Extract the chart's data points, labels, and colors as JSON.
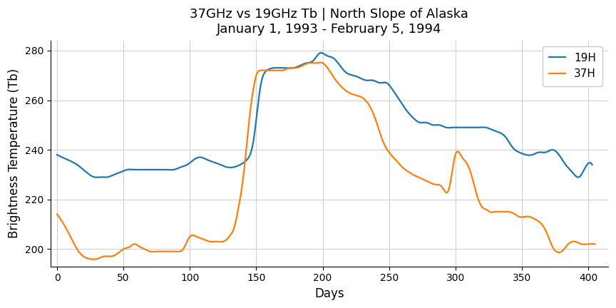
{
  "title_line1": "37GHz vs 19GHz Tb | North Slope of Alaska",
  "title_line2": "January 1, 1993 - February 5, 1994",
  "xlabel": "Days",
  "ylabel": "Brightness Temperature (Tb)",
  "xlim": [
    -5,
    415
  ],
  "ylim": [
    193,
    284
  ],
  "xticks": [
    0,
    50,
    100,
    150,
    200,
    250,
    300,
    350,
    400
  ],
  "yticks": [
    200,
    220,
    240,
    260,
    280
  ],
  "title_fontsize": 13,
  "label_fontsize": 12,
  "tick_fontsize": 10,
  "legend_fontsize": 11,
  "color_19H": "#1f77b4",
  "color_37H": "#ff7f0e",
  "linewidth": 1.6,
  "19H_x": [
    0,
    8,
    15,
    22,
    28,
    33,
    38,
    43,
    48,
    53,
    58,
    63,
    68,
    73,
    78,
    83,
    88,
    93,
    98,
    103,
    108,
    113,
    118,
    123,
    128,
    133,
    138,
    143,
    148,
    153,
    158,
    163,
    168,
    173,
    178,
    183,
    188,
    193,
    198,
    203,
    208,
    213,
    218,
    223,
    228,
    233,
    238,
    243,
    248,
    253,
    258,
    263,
    268,
    273,
    278,
    283,
    288,
    293,
    298,
    303,
    308,
    313,
    318,
    323,
    328,
    333,
    338,
    343,
    348,
    353,
    358,
    363,
    368,
    373,
    378,
    383,
    388,
    393,
    398,
    403
  ],
  "19H_y": [
    238,
    236,
    234,
    231,
    229,
    229,
    229,
    230,
    231,
    232,
    232,
    232,
    232,
    232,
    232,
    232,
    232,
    233,
    234,
    236,
    237,
    236,
    235,
    234,
    233,
    233,
    234,
    236,
    244,
    265,
    272,
    273,
    273,
    273,
    273,
    274,
    275,
    276,
    279,
    278,
    277,
    274,
    271,
    270,
    269,
    268,
    268,
    267,
    267,
    264,
    260,
    256,
    253,
    251,
    251,
    250,
    250,
    249,
    249,
    249,
    249,
    249,
    249,
    249,
    248,
    247,
    245,
    241,
    239,
    238,
    238,
    239,
    239,
    240,
    238,
    234,
    231,
    229,
    233,
    234
  ],
  "37H_x": [
    0,
    5,
    10,
    15,
    20,
    25,
    30,
    35,
    40,
    45,
    50,
    55,
    58,
    62,
    66,
    70,
    74,
    78,
    82,
    86,
    90,
    95,
    100,
    105,
    110,
    115,
    120,
    125,
    128,
    131,
    133,
    136,
    140,
    143,
    146,
    148,
    150,
    153,
    157,
    160,
    163,
    166,
    170,
    175,
    180,
    185,
    190,
    195,
    200,
    205,
    210,
    215,
    220,
    225,
    230,
    235,
    240,
    245,
    250,
    255,
    260,
    265,
    268,
    272,
    276,
    280,
    285,
    290,
    295,
    300,
    305,
    308,
    312,
    316,
    318,
    320,
    323,
    326,
    330,
    335,
    340,
    345,
    348,
    352,
    356,
    360,
    365,
    370,
    373,
    376,
    380,
    385,
    390,
    395,
    400,
    405
  ],
  "37H_y": [
    214,
    210,
    205,
    200,
    197,
    196,
    196,
    197,
    197,
    198,
    200,
    201,
    202,
    201,
    200,
    199,
    199,
    199,
    199,
    199,
    199,
    200,
    205,
    205,
    204,
    203,
    203,
    203,
    204,
    206,
    208,
    215,
    228,
    243,
    258,
    265,
    270,
    272,
    272,
    272,
    272,
    272,
    272,
    273,
    273,
    274,
    275,
    275,
    275,
    272,
    268,
    265,
    263,
    262,
    261,
    258,
    252,
    244,
    239,
    236,
    233,
    231,
    230,
    229,
    228,
    227,
    226,
    225,
    224,
    238,
    237,
    235,
    230,
    222,
    219,
    217,
    216,
    215,
    215,
    215,
    215,
    214,
    213,
    213,
    213,
    212,
    210,
    205,
    201,
    199,
    199,
    202,
    203,
    202,
    202,
    202
  ]
}
